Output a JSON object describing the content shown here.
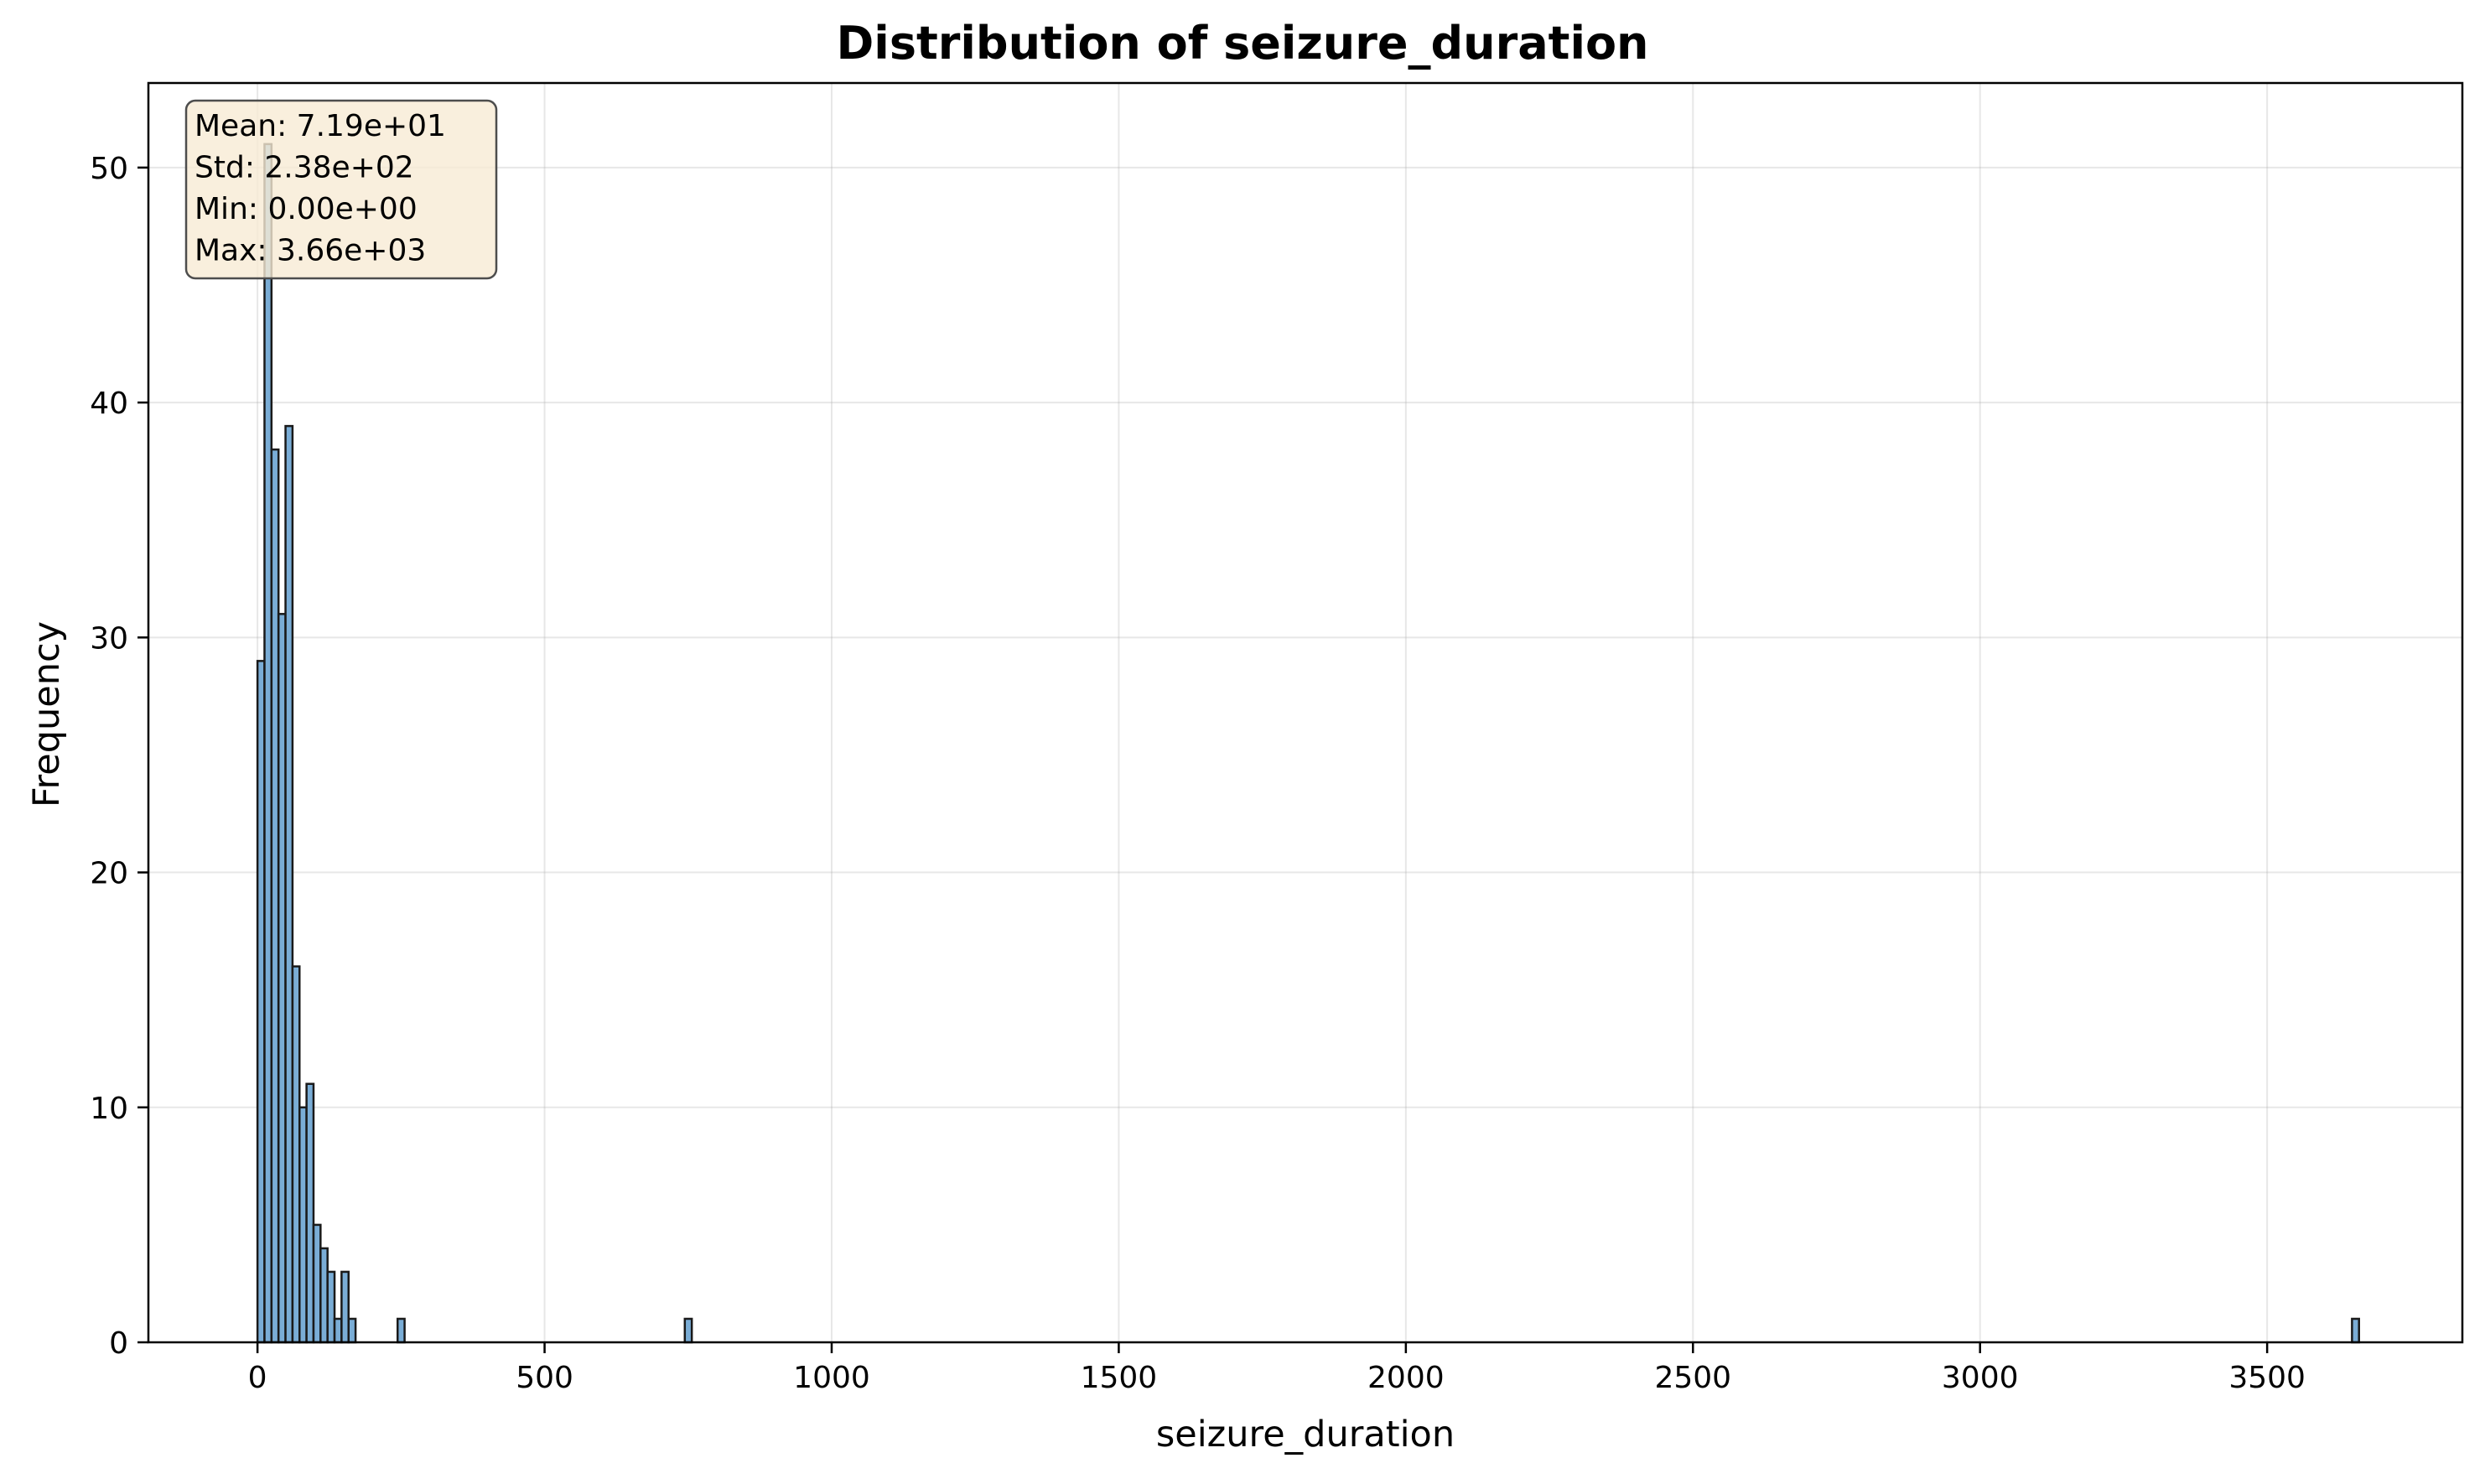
{
  "chart_data": {
    "type": "bar",
    "title": "Distribution of seizure_duration",
    "xlabel": "seizure_duration",
    "ylabel": "Frequency",
    "xlim": [
      -190,
      3840
    ],
    "ylim": [
      0,
      53.6
    ],
    "grid": true,
    "bin_width": 12.2,
    "bar_color": "#7aadd6",
    "edge_color": "#1a1a1a",
    "stats_box_color": "#f8ebd4",
    "x_ticks": [
      0,
      500,
      1000,
      1500,
      2000,
      2500,
      3000,
      3500
    ],
    "y_ticks": [
      0,
      10,
      20,
      30,
      40,
      50
    ],
    "bins": [
      {
        "x": 0.0,
        "count": 29
      },
      {
        "x": 12.2,
        "count": 51
      },
      {
        "x": 24.4,
        "count": 38
      },
      {
        "x": 36.6,
        "count": 31
      },
      {
        "x": 48.8,
        "count": 39
      },
      {
        "x": 61.0,
        "count": 16
      },
      {
        "x": 73.2,
        "count": 10
      },
      {
        "x": 85.4,
        "count": 11
      },
      {
        "x": 97.6,
        "count": 5
      },
      {
        "x": 109.8,
        "count": 4
      },
      {
        "x": 122.0,
        "count": 3
      },
      {
        "x": 134.2,
        "count": 1
      },
      {
        "x": 146.4,
        "count": 3
      },
      {
        "x": 158.6,
        "count": 1
      },
      {
        "x": 244.0,
        "count": 1
      },
      {
        "x": 744.2,
        "count": 1
      },
      {
        "x": 3647.8,
        "count": 1
      }
    ],
    "stats": [
      "Mean: 7.19e+01",
      "Std: 2.38e+02",
      "Min: 0.00e+00",
      "Max: 3.66e+03"
    ]
  }
}
